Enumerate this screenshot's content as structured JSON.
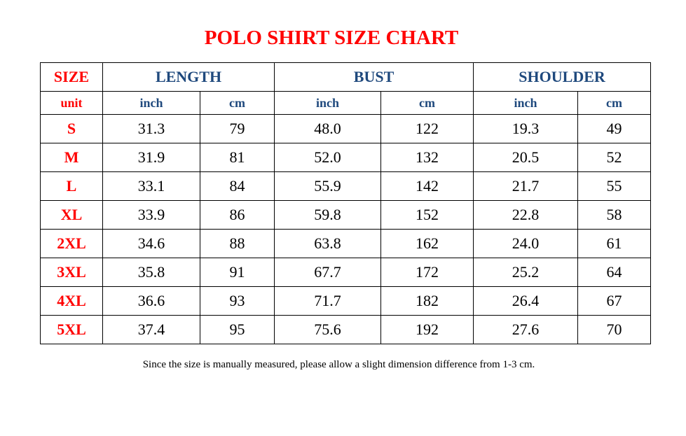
{
  "title": "POLO SHIRT SIZE CHART",
  "headers": {
    "size": "SIZE",
    "length": "LENGTH",
    "bust": "BUST",
    "shoulder": "SHOULDER"
  },
  "units": [
    "unit",
    "inch",
    "cm",
    "inch",
    "cm",
    "inch",
    "cm"
  ],
  "rows": [
    [
      "S",
      "31.3",
      "79",
      "48.0",
      "122",
      "19.3",
      "49"
    ],
    [
      "M",
      "31.9",
      "81",
      "52.0",
      "132",
      "20.5",
      "52"
    ],
    [
      "L",
      "33.1",
      "84",
      "55.9",
      "142",
      "21.7",
      "55"
    ],
    [
      "XL",
      "33.9",
      "86",
      "59.8",
      "152",
      "22.8",
      "58"
    ],
    [
      "2XL",
      "34.6",
      "88",
      "63.8",
      "162",
      "24.0",
      "61"
    ],
    [
      "3XL",
      "35.8",
      "91",
      "67.7",
      "172",
      "25.2",
      "64"
    ],
    [
      "4XL",
      "36.6",
      "93",
      "71.7",
      "182",
      "26.4",
      "67"
    ],
    [
      "5XL",
      "37.4",
      "95",
      "75.6",
      "192",
      "27.6",
      "70"
    ]
  ],
  "note": "Since the size is manually measured, please allow a slight dimension difference from 1-3 cm.",
  "colors": {
    "title": "#ff0000",
    "header": "#1f497d"
  }
}
